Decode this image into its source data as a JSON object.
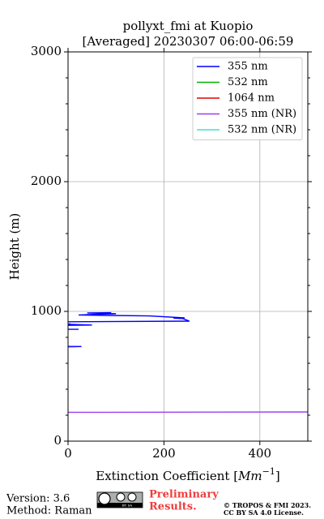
{
  "chart_data": {
    "type": "line",
    "title": "pollyxt_fmi at Kuopio",
    "subtitle": "[Averaged] 20230307 06:00-06:59",
    "x_label": [
      "Extinction Coefficient [",
      "Mm",
      "−1",
      "]"
    ],
    "y_label": "Height (m)",
    "xlim": [
      0,
      500
    ],
    "xticks": [
      0,
      200,
      400
    ],
    "ylim": [
      0,
      3000
    ],
    "yticks": [
      0,
      1000,
      2000,
      3000
    ],
    "yminorticks": [
      200,
      400,
      600,
      800,
      1200,
      1400,
      1600,
      1800,
      2200,
      2400,
      2600,
      2800
    ],
    "grid": true,
    "legend": "upper right",
    "series": [
      {
        "name": "355 nm",
        "color": "#0000ff",
        "x": [
          0,
          28,
          0,
          null,
          0,
          22,
          null,
          0,
          50,
          0,
          5,
          null,
          0,
          253,
          240,
          220,
          243,
          170,
          22,
          60,
          100,
          40,
          90
        ],
        "y": [
          730,
          729,
          727,
          null,
          862,
          862,
          null,
          893,
          895,
          900,
          905,
          null,
          920,
          925,
          944,
          948,
          950,
          965,
          972,
          978,
          982,
          988,
          990
        ]
      },
      {
        "name": "532 nm",
        "color": "#00b400",
        "x": [],
        "y": []
      },
      {
        "name": "1064 nm",
        "color": "#e00000",
        "x": [],
        "y": []
      },
      {
        "name": "355 nm (NR)",
        "color": "#9b3ff0",
        "x": [
          0,
          500
        ],
        "y": [
          222,
          225
        ]
      },
      {
        "name": "532 nm (NR)",
        "color": "#40e0d0",
        "x": [],
        "y": []
      }
    ]
  },
  "footer": {
    "version": "Version: 3.6",
    "method": "Method: Raman",
    "badge": "BY SA",
    "status": [
      "Preliminary",
      "Results."
    ],
    "copyright": [
      "© TROPOS & FMI 2023.",
      "CC BY SA 4.0 License."
    ]
  }
}
